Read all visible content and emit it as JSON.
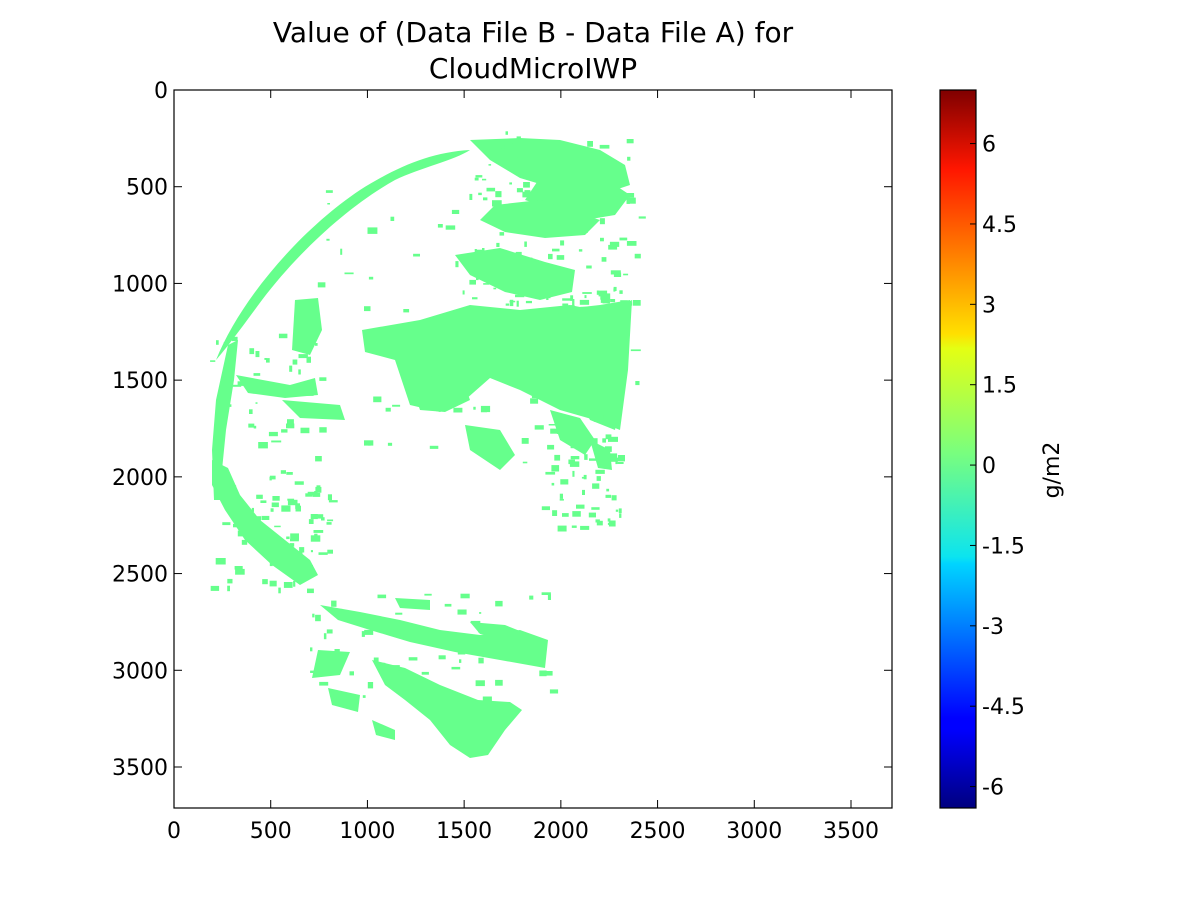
{
  "chart_data": {
    "type": "heatmap",
    "title_lines": [
      "Value of (Data File B - Data File A) for",
      "CloudMicroIWP"
    ],
    "xlim": [
      0,
      3712
    ],
    "ylim": [
      3712,
      0
    ],
    "x_ticks": [
      0,
      500,
      1000,
      1500,
      2000,
      2500,
      3000,
      3500
    ],
    "y_ticks": [
      0,
      500,
      1000,
      1500,
      2000,
      2500,
      3000,
      3500
    ],
    "colorbar": {
      "label": "g/m2",
      "range": [
        -6.4,
        7
      ],
      "ticks": [
        "6",
        "4.5",
        "3",
        "1.5",
        "0",
        "-1.5",
        "-3",
        "-4.5",
        "-6"
      ],
      "tick_values": [
        6,
        4.5,
        3,
        1.5,
        0,
        -1.5,
        -3,
        -4.5,
        -6
      ],
      "colormap": "jet"
    },
    "field_value": 0,
    "field_color": "#66ff8c"
  }
}
